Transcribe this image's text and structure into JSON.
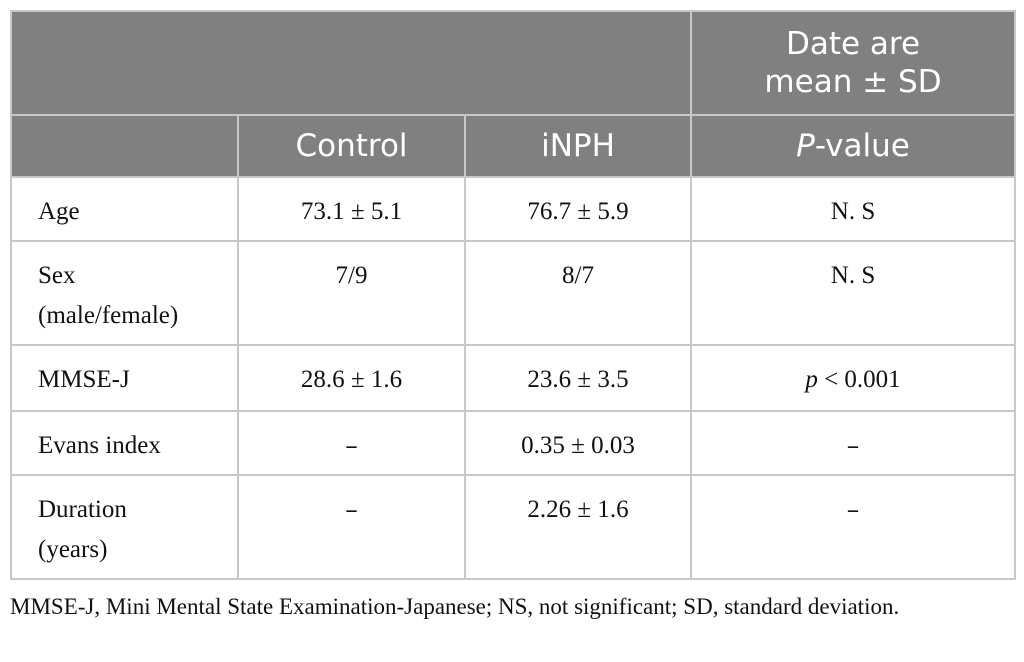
{
  "table": {
    "header_top": {
      "stat_note_line1": "Date are",
      "stat_note_line2": "mean ± SD"
    },
    "header": {
      "control": "Control",
      "inph": "iNPH",
      "p_italic": "P",
      "p_rest": "-value"
    },
    "rows": [
      {
        "label_line1": "Age",
        "label_line2": "",
        "control": "73.1 ± 5.1",
        "inph": "76.7 ± 5.9",
        "p": "N. S"
      },
      {
        "label_line1": "Sex",
        "label_line2": "(male/female)",
        "control": "7/9",
        "inph": "8/7",
        "p": "N. S"
      },
      {
        "label_line1": "MMSE-J",
        "label_line2": "",
        "control": "28.6 ± 1.6",
        "inph": "23.6 ± 3.5",
        "p_italic": "p",
        "p_rest": " < 0.001"
      },
      {
        "label_line1": "Evans index",
        "label_line2": "",
        "control": "–",
        "inph": "0.35 ± 0.03",
        "p": "–"
      },
      {
        "label_line1": "Duration",
        "label_line2": "(years)",
        "control": "–",
        "inph": "2.26 ± 1.6",
        "p": "–"
      }
    ]
  },
  "footnote": "MMSE-J, Mini Mental State Examination-Japanese; NS, not significant; SD, standard deviation."
}
